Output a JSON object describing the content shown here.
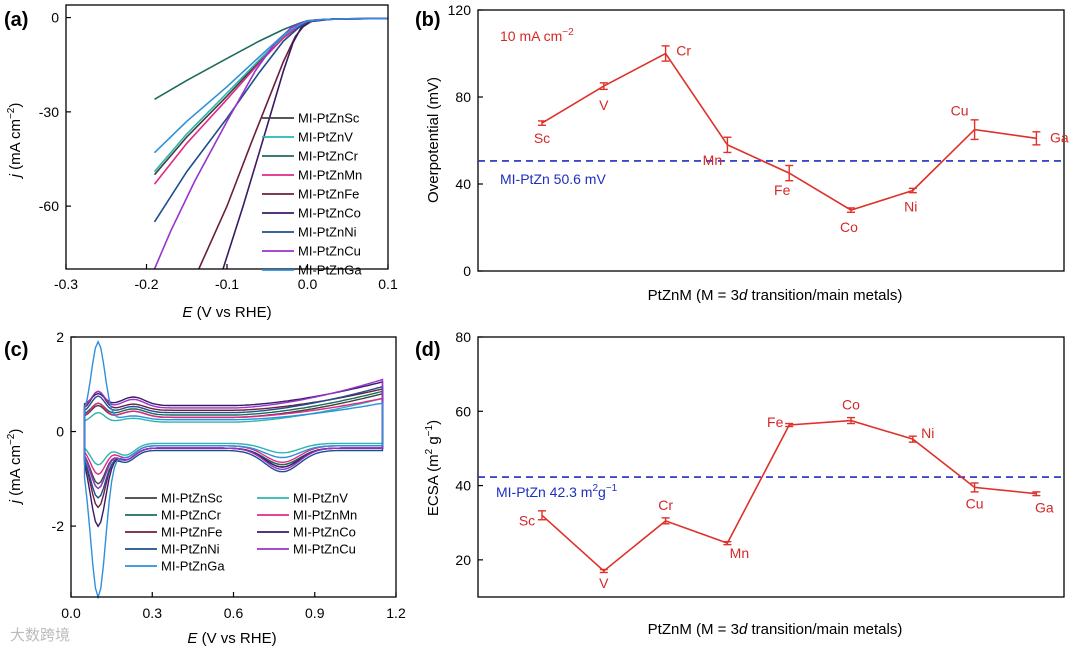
{
  "watermark": "大数跨境",
  "chart_data": [
    {
      "panel": "(a)",
      "type": "line",
      "xlabel_italic": "E",
      "xlabel_rest": " (V vs RHE)",
      "ylabel_italic": "j",
      "ylabel_rest": " (mA cm",
      "ylabel_sup": "−2",
      "ylabel_close": ")",
      "xlim": [
        -0.3,
        0.1
      ],
      "ylim": [
        -80,
        4
      ],
      "xticks": [
        -0.3,
        -0.2,
        -0.1,
        0.0,
        0.1
      ],
      "xtick_labels": [
        "-0.3",
        "-0.2",
        "-0.1",
        "0.0",
        "0.1"
      ],
      "yticks": [
        0,
        -30,
        -60
      ],
      "ytick_labels": [
        "0",
        "-30",
        "-60"
      ],
      "legend_position": "center-right",
      "series": [
        {
          "name": "MI-PtZnSc",
          "color": "#404040",
          "x": [
            -0.19,
            -0.15,
            -0.1,
            -0.06,
            -0.03,
            -0.01,
            0.0,
            0.02,
            0.05,
            0.1
          ],
          "y": [
            -50,
            -38,
            -25,
            -14,
            -6,
            -2.5,
            -1.2,
            -0.6,
            -0.4,
            -0.3
          ]
        },
        {
          "name": "MI-PtZnV",
          "color": "#2bb5b0",
          "x": [
            -0.19,
            -0.15,
            -0.1,
            -0.06,
            -0.03,
            -0.01,
            0.0,
            0.02,
            0.05,
            0.1
          ],
          "y": [
            -49,
            -37,
            -24,
            -13.5,
            -6,
            -2.5,
            -1.2,
            -0.6,
            -0.4,
            -0.3
          ]
        },
        {
          "name": "MI-PtZnCr",
          "color": "#1c6b5e",
          "x": [
            -0.19,
            -0.15,
            -0.1,
            -0.06,
            -0.03,
            -0.01,
            0.0,
            0.02,
            0.05,
            0.1
          ],
          "y": [
            -26,
            -20,
            -13,
            -7.5,
            -3.8,
            -1.8,
            -1.0,
            -0.6,
            -0.4,
            -0.3
          ]
        },
        {
          "name": "MI-PtZnMn",
          "color": "#e02888",
          "x": [
            -0.19,
            -0.15,
            -0.1,
            -0.06,
            -0.03,
            -0.01,
            0.0,
            0.02,
            0.05,
            0.1
          ],
          "y": [
            -53,
            -40,
            -26,
            -14.5,
            -6.5,
            -2.7,
            -1.3,
            -0.6,
            -0.4,
            -0.3
          ]
        },
        {
          "name": "MI-PtZnFe",
          "color": "#6b1f3c",
          "x": [
            -0.135,
            -0.1,
            -0.07,
            -0.05,
            -0.03,
            -0.015,
            -0.005,
            0.005,
            0.03,
            0.1
          ],
          "y": [
            -80,
            -60,
            -40,
            -27,
            -14,
            -6,
            -2.8,
            -1.2,
            -0.5,
            -0.3
          ]
        },
        {
          "name": "MI-PtZnCo",
          "color": "#3a1a66",
          "x": [
            -0.105,
            -0.08,
            -0.06,
            -0.045,
            -0.03,
            -0.018,
            -0.008,
            0.002,
            0.03,
            0.1
          ],
          "y": [
            -80,
            -60,
            -43,
            -30,
            -17,
            -8,
            -3.2,
            -1.3,
            -0.5,
            -0.3
          ]
        },
        {
          "name": "MI-PtZnNi",
          "color": "#1f4e8c",
          "x": [
            -0.19,
            -0.15,
            -0.1,
            -0.06,
            -0.03,
            -0.01,
            0.0,
            0.02,
            0.05,
            0.1
          ],
          "y": [
            -65,
            -49,
            -32,
            -17.5,
            -7.5,
            -3,
            -1.4,
            -0.6,
            -0.4,
            -0.3
          ]
        },
        {
          "name": "MI-PtZnCu",
          "color": "#9933cc",
          "x": [
            -0.19,
            -0.17,
            -0.14,
            -0.1,
            -0.065,
            -0.04,
            -0.02,
            -0.005,
            0.01,
            0.05,
            0.1
          ],
          "y": [
            -80,
            -68,
            -52,
            -33,
            -17,
            -8,
            -3.2,
            -1.4,
            -0.7,
            -0.4,
            -0.3
          ]
        },
        {
          "name": "MI-PtZnGa",
          "color": "#2f8fdc",
          "x": [
            -0.19,
            -0.15,
            -0.1,
            -0.06,
            -0.03,
            -0.01,
            0.0,
            0.02,
            0.05,
            0.1
          ],
          "y": [
            -43,
            -33,
            -22,
            -12.5,
            -5.5,
            -2.3,
            -1.1,
            -0.6,
            -0.4,
            -0.3
          ]
        }
      ]
    },
    {
      "panel": "(b)",
      "type": "line",
      "xlabel": "PtZnM (M = 3",
      "xlabel_italic": "d",
      "xlabel_rest": " transition/main metals)",
      "ylabel": "Overpotential (mV)",
      "ylim": [
        0,
        120
      ],
      "yticks": [
        0,
        40,
        80,
        120
      ],
      "ytick_labels": [
        "0",
        "40",
        "80",
        "120"
      ],
      "annotation": "10 mA cm",
      "annotation_sup": "−2",
      "reference": {
        "label": "MI-PtZn 50.6 mV",
        "value": 50.6
      },
      "categories": [
        "Sc",
        "V",
        "Cr",
        "Mn",
        "Fe",
        "Co",
        "Ni",
        "Cu",
        "Ga"
      ],
      "values": [
        68,
        85,
        100,
        58,
        45,
        28,
        37,
        65,
        61
      ],
      "errors": [
        1,
        1.5,
        3.5,
        3.5,
        3.5,
        1,
        1,
        4.5,
        3
      ]
    },
    {
      "panel": "(c)",
      "type": "line",
      "xlabel_italic": "E",
      "xlabel_rest": " (V vs RHE)",
      "ylabel_italic": "j",
      "ylabel_rest": " (mA cm",
      "ylabel_sup": "−2",
      "ylabel_close": ")",
      "xlim": [
        0.0,
        1.2
      ],
      "ylim": [
        -3.5,
        2.0
      ],
      "xticks": [
        0.0,
        0.3,
        0.6,
        0.9,
        1.2
      ],
      "xtick_labels": [
        "0.0",
        "0.3",
        "0.6",
        "0.9",
        "1.2"
      ],
      "yticks": [
        2,
        0,
        -2
      ],
      "ytick_labels": [
        "2",
        "0",
        "-2"
      ],
      "legend_position": "bottom-center",
      "series": [
        {
          "name": "MI-PtZnSc",
          "color": "#404040",
          "base_up": 0.3,
          "base_down": -0.35,
          "h_peak": 0.55,
          "end_up": 0.8,
          "h_dip": -1.1,
          "ox": 0.15,
          "red": -0.35
        },
        {
          "name": "MI-PtZnV",
          "color": "#2bb5b0",
          "base_up": 0.2,
          "base_down": -0.25,
          "h_peak": 0.4,
          "end_up": 0.7,
          "h_dip": -0.7,
          "ox": 0.1,
          "red": -0.2
        },
        {
          "name": "MI-PtZnCr",
          "color": "#1c6b5e",
          "base_up": 0.35,
          "base_down": -0.35,
          "h_peak": 0.6,
          "end_up": 0.85,
          "h_dip": -1.2,
          "ox": 0.15,
          "red": -0.35
        },
        {
          "name": "MI-PtZnMn",
          "color": "#e02888",
          "base_up": 0.3,
          "base_down": -0.3,
          "h_peak": 0.6,
          "end_up": 0.7,
          "h_dip": -0.9,
          "ox": 0.15,
          "red": -0.35
        },
        {
          "name": "MI-PtZnFe",
          "color": "#6b1f3c",
          "base_up": 0.45,
          "base_down": -0.35,
          "h_peak": 0.85,
          "end_up": 0.9,
          "h_dip": -1.6,
          "ox": 0.15,
          "red": -0.4
        },
        {
          "name": "MI-PtZnCo",
          "color": "#3a1a66",
          "base_up": 0.55,
          "base_down": -0.35,
          "h_peak": 0.8,
          "end_up": 1.05,
          "h_dip": -2.0,
          "ox": 0.2,
          "red": -0.4
        },
        {
          "name": "MI-PtZnNi",
          "color": "#1f4e8c",
          "base_up": 0.4,
          "base_down": -0.4,
          "h_peak": 0.75,
          "end_up": 0.95,
          "h_dip": -1.4,
          "ox": 0.15,
          "red": -0.45
        },
        {
          "name": "MI-PtZnCu",
          "color": "#9933cc",
          "base_up": 0.5,
          "base_down": -0.35,
          "h_peak": 0.85,
          "end_up": 1.1,
          "h_dip": -1.2,
          "ox": 0.2,
          "red": -0.45
        },
        {
          "name": "MI-PtZnGa",
          "color": "#2f8fdc",
          "base_up": 0.25,
          "base_down": -0.3,
          "h_peak": 1.9,
          "end_up": 0.6,
          "h_dip": -3.5,
          "ox": 0.1,
          "red": -0.25
        }
      ]
    },
    {
      "panel": "(d)",
      "type": "line",
      "xlabel": "PtZnM (M = 3",
      "xlabel_italic": "d",
      "xlabel_rest": " transition/main metals)",
      "ylabel": "ECSA (m",
      "ylabel_sup": "2",
      "ylabel_mid": " g",
      "ylabel_sup2": "−1",
      "ylabel_close": ")",
      "ylim": [
        10,
        80
      ],
      "yticks": [
        20,
        40,
        60,
        80
      ],
      "ytick_labels": [
        "20",
        "40",
        "60",
        "80"
      ],
      "reference": {
        "label": "MI-PtZn 42.3 m",
        "label_sup": "2",
        "label_mid": "g",
        "label_sup2": "−1",
        "value": 42.3
      },
      "categories": [
        "Sc",
        "V",
        "Cr",
        "Mn",
        "Fe",
        "Co",
        "Ni",
        "Cu",
        "Ga"
      ],
      "values": [
        32,
        17,
        30.5,
        24.5,
        56.3,
        57.5,
        52.5,
        39.5,
        37.8
      ],
      "errors": [
        1.2,
        0.4,
        0.8,
        0.4,
        0.4,
        0.8,
        0.8,
        1.2,
        0.5
      ]
    }
  ]
}
